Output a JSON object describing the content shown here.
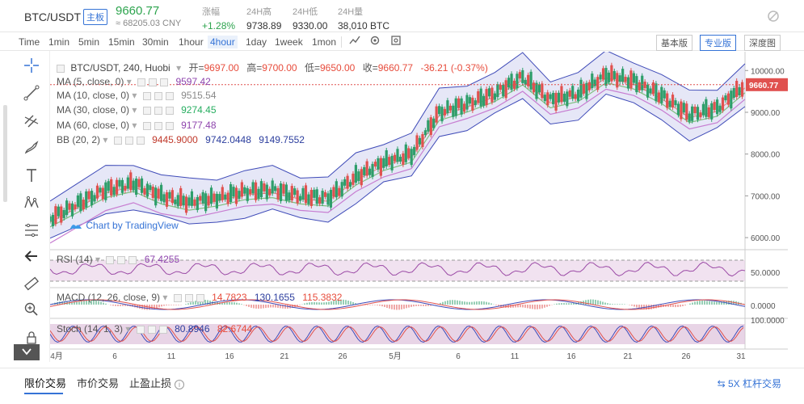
{
  "header": {
    "pair": "BTC/USDT",
    "main_tag": "主板",
    "price": "9660.77",
    "cny": "≈ 68205.03 CNY",
    "stats": [
      {
        "label": "涨幅",
        "value": "+1.28%",
        "color": "green"
      },
      {
        "label": "24H高",
        "value": "9738.89"
      },
      {
        "label": "24H低",
        "value": "9330.00"
      },
      {
        "label": "24H量",
        "value": "38,010 BTC"
      }
    ]
  },
  "toolbar": {
    "timeframes": [
      "Time",
      "1min",
      "5min",
      "15min",
      "30min",
      "1hour",
      "4hour",
      "1day",
      "1week",
      "1mon"
    ],
    "active_timeframe": "4hour",
    "views": [
      "基本版",
      "专业版",
      "深度图"
    ],
    "active_view": "专业版"
  },
  "legend": {
    "title": "BTC/USDT, 240, Huobi",
    "ohlc": {
      "open_label": "开=",
      "open": "9697.00",
      "high_label": "高=",
      "high": "9700.00",
      "low_label": "低=",
      "low": "9650.00",
      "close_label": "收=",
      "close": "9660.77",
      "change": "-36.21 (-0.37%)"
    },
    "ma": [
      {
        "label": "MA (5, close, 0)",
        "value": "9597.42",
        "color": "#8e44ad"
      },
      {
        "label": "MA (10, close, 0)",
        "value": "9515.54",
        "color": "#e67e22"
      },
      {
        "label": "MA (30, close, 0)",
        "value": "9274.45",
        "color": "#27ae60"
      },
      {
        "label": "MA (60, close, 0)",
        "value": "9177.48",
        "color": "#c0392b"
      }
    ],
    "bb": {
      "label": "BB (20, 2)",
      "values": [
        "9445.9000",
        "9742.0448",
        "9149.7552"
      ],
      "colors": [
        "#c0392b",
        "#2c3e9e",
        "#2c3e9e"
      ]
    },
    "rsi": {
      "label": "RSI (14)",
      "value": "67.4255"
    },
    "macd": {
      "label": "MACD (12, 26, close, 9)",
      "values": [
        "14.7823",
        "130.1655",
        "115.3832"
      ]
    },
    "stoch": {
      "label": "Stoch (14, 1, 3)",
      "values": [
        "80.8946",
        "82.6744"
      ]
    }
  },
  "tv_logo": "Chart by TradingView",
  "chart_data": {
    "type": "line",
    "title": "BTC/USDT, 240, Huobi",
    "x_tick_labels": [
      "4月",
      "6",
      "11",
      "16",
      "21",
      "26",
      "5月",
      "6",
      "11",
      "16",
      "21",
      "26",
      "31"
    ],
    "y_ticks": [
      6000,
      7000,
      8000,
      9000,
      10000
    ],
    "y_tick_labels": [
      "6000.00",
      "7000.00",
      "8000.00",
      "9000.00",
      "10000.00"
    ],
    "ylim": [
      5750,
      10450
    ],
    "last_price": 9660.77,
    "last_price_label": "9660.77",
    "series": [
      {
        "x": [
          0,
          4,
          8,
          12,
          16,
          20,
          24,
          28,
          32,
          36,
          40,
          44,
          48,
          52,
          56,
          60,
          64,
          68,
          72,
          76,
          80,
          84,
          88,
          92,
          96,
          100
        ],
        "y": [
          6450,
          6800,
          7150,
          7300,
          7000,
          6850,
          6950,
          7100,
          7150,
          7000,
          6950,
          7450,
          7800,
          8000,
          9000,
          9200,
          9450,
          9850,
          9300,
          9450,
          9900,
          9750,
          9400,
          8950,
          9100,
          9660
        ]
      }
    ],
    "rsi": {
      "ticks": [
        50
      ],
      "tick_labels": [
        "50.0000"
      ],
      "bands": [
        30,
        70
      ]
    },
    "macd": {
      "ticks": [
        0
      ],
      "tick_labels": [
        "0.0000"
      ]
    },
    "stoch": {
      "ticks": [
        100
      ],
      "tick_labels": [
        "100.0000"
      ]
    }
  }
}
